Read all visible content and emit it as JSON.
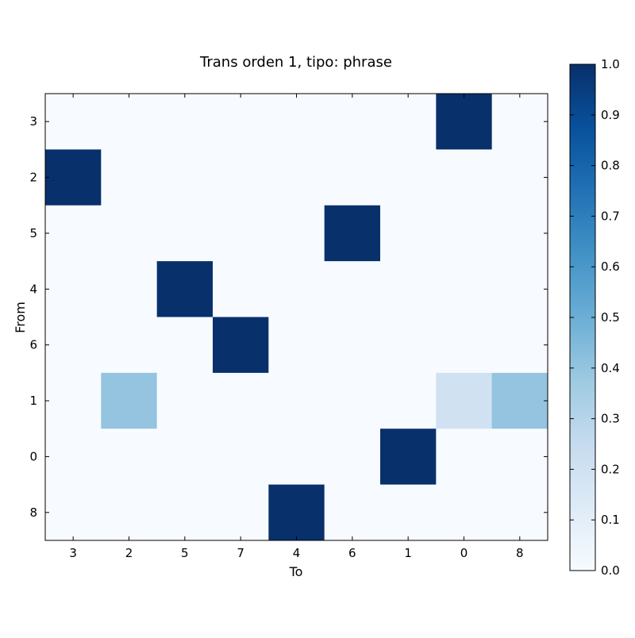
{
  "chart_data": {
    "type": "heatmap",
    "title": "Trans orden 1, tipo: phrase",
    "xlabel": "To",
    "ylabel": "From",
    "x_categories": [
      "3",
      "2",
      "5",
      "7",
      "4",
      "6",
      "1",
      "0",
      "8"
    ],
    "y_categories": [
      "3",
      "2",
      "5",
      "4",
      "6",
      "1",
      "0",
      "8"
    ],
    "values": [
      [
        0,
        0,
        0,
        0,
        0,
        0,
        0,
        1,
        0
      ],
      [
        1,
        0,
        0,
        0,
        0,
        0,
        0,
        0,
        0
      ],
      [
        0,
        0,
        0,
        0,
        0,
        1,
        0,
        0,
        0
      ],
      [
        0,
        0,
        1,
        0,
        0,
        0,
        0,
        0,
        0
      ],
      [
        0,
        0,
        0,
        1,
        0,
        0,
        0,
        0,
        0
      ],
      [
        0,
        0.4,
        0,
        0,
        0,
        0,
        0,
        0.2,
        0.4
      ],
      [
        0,
        0,
        0,
        0,
        0,
        0,
        1,
        0,
        0
      ],
      [
        0,
        0,
        0,
        0,
        1,
        0,
        0,
        0,
        0
      ]
    ],
    "colorbar": {
      "min": 0,
      "max": 1,
      "ticks": [
        "0.0",
        "0.1",
        "0.2",
        "0.3",
        "0.4",
        "0.5",
        "0.6",
        "0.7",
        "0.8",
        "0.9",
        "1.0"
      ]
    },
    "colormap": "Blues",
    "colors": {
      "low": "#f7fbff",
      "high": "#08306b"
    }
  }
}
